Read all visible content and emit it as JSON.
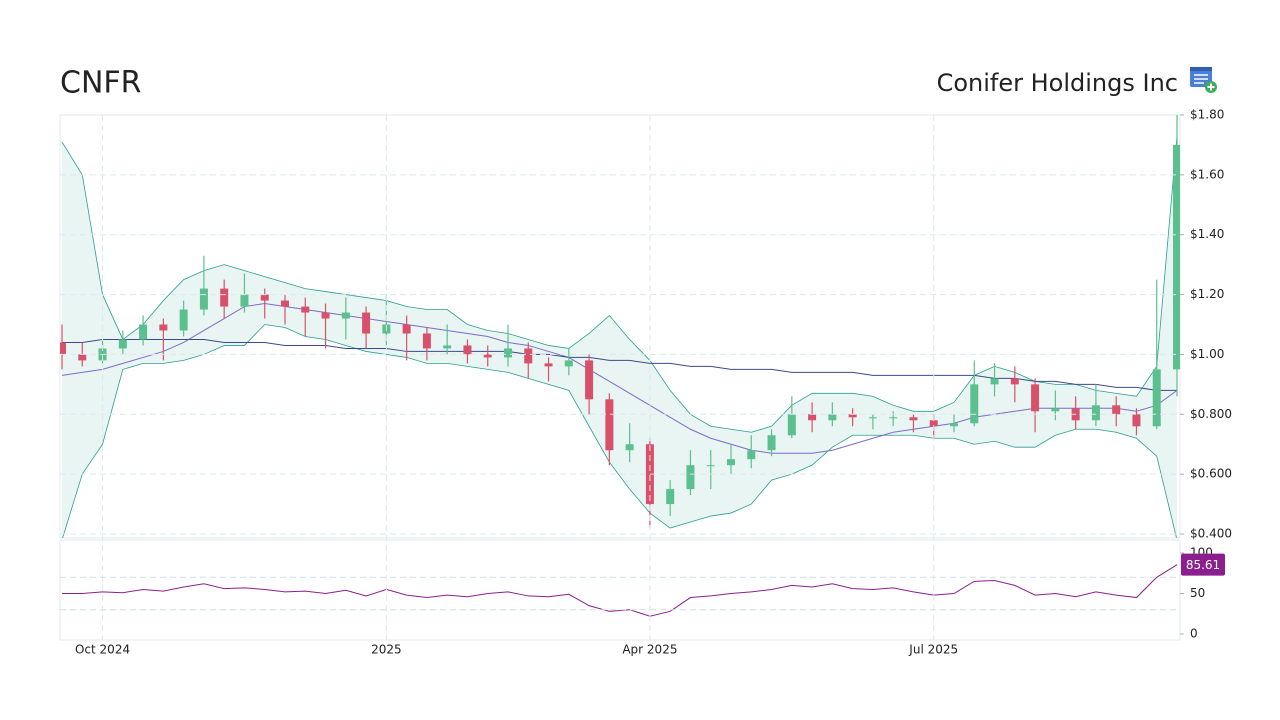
{
  "chart_data": [
    {
      "type": "candlestick",
      "title": "CNFR",
      "subtitle": "Conifer Holdings Inc",
      "categories": [
        null,
        null,
        "Oct 2024",
        null,
        null,
        null,
        null,
        null,
        null,
        null,
        null,
        null,
        null,
        null,
        null,
        null,
        "2025",
        null,
        null,
        null,
        null,
        null,
        null,
        null,
        null,
        null,
        null,
        null,
        null,
        "Apr 2025",
        null,
        null,
        null,
        null,
        null,
        null,
        null,
        null,
        null,
        null,
        null,
        null,
        null,
        "Jul 2025",
        null,
        null,
        null,
        null,
        null,
        null,
        null,
        null,
        null,
        null,
        null,
        null
      ],
      "open": [
        1.04,
        1.0,
        0.98,
        1.02,
        1.05,
        1.1,
        1.08,
        1.15,
        1.22,
        1.16,
        1.2,
        1.18,
        1.16,
        1.14,
        1.12,
        1.14,
        1.07,
        1.1,
        1.07,
        1.02,
        1.03,
        1.0,
        0.99,
        1.02,
        0.97,
        0.96,
        0.98,
        0.85,
        0.68,
        0.7,
        0.5,
        0.55,
        0.63,
        0.63,
        0.65,
        0.68,
        0.73,
        0.8,
        0.78,
        0.8,
        0.79,
        0.79,
        0.79,
        0.78,
        0.76,
        0.77,
        0.9,
        0.92,
        0.9,
        0.81,
        0.82,
        0.78,
        0.83,
        0.8,
        0.76,
        0.95
      ],
      "high": [
        1.1,
        1.04,
        1.05,
        1.08,
        1.13,
        1.12,
        1.18,
        1.33,
        1.25,
        1.27,
        1.22,
        1.2,
        1.19,
        1.17,
        1.19,
        1.16,
        1.2,
        1.13,
        1.09,
        1.1,
        1.05,
        1.03,
        1.1,
        1.04,
        0.99,
        1.02,
        1.0,
        0.87,
        0.77,
        0.72,
        0.58,
        0.68,
        0.68,
        0.7,
        0.73,
        0.75,
        0.86,
        0.84,
        0.84,
        0.82,
        0.8,
        0.81,
        0.8,
        0.8,
        0.8,
        0.98,
        0.97,
        0.96,
        0.92,
        0.88,
        0.86,
        0.9,
        0.86,
        0.82,
        1.25,
        1.8
      ],
      "low": [
        0.95,
        0.96,
        0.97,
        1.0,
        1.03,
        0.98,
        1.06,
        1.13,
        1.12,
        1.14,
        1.12,
        1.1,
        1.06,
        1.02,
        1.05,
        1.02,
        1.03,
        0.98,
        0.98,
        1.0,
        0.97,
        0.96,
        0.96,
        0.92,
        0.91,
        0.93,
        0.8,
        0.63,
        0.64,
        0.42,
        0.46,
        0.53,
        0.55,
        0.6,
        0.62,
        0.66,
        0.72,
        0.74,
        0.76,
        0.76,
        0.75,
        0.76,
        0.74,
        0.72,
        0.74,
        0.76,
        0.86,
        0.84,
        0.74,
        0.78,
        0.75,
        0.76,
        0.76,
        0.73,
        0.75,
        0.86
      ],
      "close": [
        1.0,
        0.98,
        1.02,
        1.05,
        1.1,
        1.08,
        1.15,
        1.22,
        1.16,
        1.2,
        1.18,
        1.16,
        1.14,
        1.12,
        1.14,
        1.07,
        1.1,
        1.07,
        1.02,
        1.03,
        1.0,
        0.99,
        1.02,
        0.97,
        0.96,
        0.98,
        0.85,
        0.68,
        0.7,
        0.5,
        0.55,
        0.63,
        0.63,
        0.65,
        0.68,
        0.73,
        0.8,
        0.78,
        0.8,
        0.79,
        0.79,
        0.79,
        0.78,
        0.76,
        0.77,
        0.9,
        0.92,
        0.9,
        0.81,
        0.82,
        0.78,
        0.83,
        0.8,
        0.76,
        0.95,
        1.7
      ],
      "up_color": "#5cbf8e",
      "down_color": "#d9506a",
      "band": {
        "color": "#2a9d8f",
        "fill": "#e8f5f2",
        "upper": [
          1.71,
          1.6,
          1.2,
          1.05,
          1.1,
          1.18,
          1.25,
          1.28,
          1.3,
          1.28,
          1.26,
          1.24,
          1.22,
          1.21,
          1.2,
          1.19,
          1.18,
          1.16,
          1.15,
          1.15,
          1.1,
          1.08,
          1.07,
          1.05,
          1.03,
          1.02,
          1.07,
          1.13,
          1.05,
          0.98,
          0.88,
          0.8,
          0.76,
          0.75,
          0.74,
          0.76,
          0.83,
          0.87,
          0.87,
          0.87,
          0.86,
          0.83,
          0.81,
          0.81,
          0.84,
          0.93,
          0.96,
          0.94,
          0.91,
          0.9,
          0.9,
          0.88,
          0.87,
          0.86,
          0.96,
          1.73
        ],
        "lower": [
          0.38,
          0.6,
          0.7,
          0.95,
          0.97,
          0.97,
          0.98,
          1.0,
          1.03,
          1.03,
          1.1,
          1.09,
          1.06,
          1.05,
          1.03,
          1.01,
          1.0,
          0.99,
          0.97,
          0.97,
          0.96,
          0.95,
          0.94,
          0.92,
          0.9,
          0.88,
          0.76,
          0.64,
          0.55,
          0.47,
          0.42,
          0.44,
          0.46,
          0.47,
          0.5,
          0.58,
          0.6,
          0.63,
          0.69,
          0.73,
          0.73,
          0.73,
          0.73,
          0.72,
          0.72,
          0.7,
          0.71,
          0.69,
          0.69,
          0.73,
          0.75,
          0.75,
          0.74,
          0.72,
          0.66,
          0.38
        ]
      },
      "series": [
        {
          "color": "#7e6bc9",
          "values": [
            0.93,
            0.94,
            0.95,
            0.97,
            0.99,
            1.01,
            1.04,
            1.08,
            1.12,
            1.16,
            1.17,
            1.16,
            1.15,
            1.14,
            1.13,
            1.12,
            1.11,
            1.1,
            1.09,
            1.08,
            1.07,
            1.06,
            1.04,
            1.03,
            1.01,
            0.99,
            0.95,
            0.91,
            0.87,
            0.83,
            0.79,
            0.75,
            0.72,
            0.7,
            0.68,
            0.67,
            0.67,
            0.67,
            0.68,
            0.7,
            0.72,
            0.74,
            0.75,
            0.76,
            0.77,
            0.79,
            0.8,
            0.81,
            0.82,
            0.82,
            0.82,
            0.82,
            0.82,
            0.81,
            0.83,
            0.88
          ]
        },
        {
          "color": "#3b4a8c",
          "values": [
            1.04,
            1.04,
            1.05,
            1.05,
            1.05,
            1.05,
            1.05,
            1.05,
            1.04,
            1.04,
            1.04,
            1.03,
            1.03,
            1.03,
            1.02,
            1.02,
            1.02,
            1.01,
            1.01,
            1.01,
            1.01,
            1.01,
            1.01,
            1.0,
            1.0,
            0.99,
            0.99,
            0.98,
            0.98,
            0.97,
            0.97,
            0.96,
            0.96,
            0.95,
            0.95,
            0.95,
            0.94,
            0.94,
            0.94,
            0.94,
            0.93,
            0.93,
            0.93,
            0.93,
            0.93,
            0.93,
            0.92,
            0.92,
            0.91,
            0.91,
            0.9,
            0.9,
            0.89,
            0.89,
            0.88,
            0.88
          ]
        }
      ],
      "ylim": [
        0.4,
        1.8
      ],
      "yticks": [
        {
          "value": 0.4,
          "label": "$0.400"
        },
        {
          "value": 0.6,
          "label": "$0.600"
        },
        {
          "value": 0.8,
          "label": "$0.800"
        },
        {
          "value": 1.0,
          "label": "$1.00"
        },
        {
          "value": 1.2,
          "label": "$1.20"
        },
        {
          "value": 1.4,
          "label": "$1.40"
        },
        {
          "value": 1.6,
          "label": "$1.60"
        },
        {
          "value": 1.8,
          "label": "$1.80"
        }
      ],
      "grid": true
    },
    {
      "type": "line",
      "color": "#8b1f8f",
      "values": [
        50,
        50,
        52,
        51,
        55,
        53,
        58,
        62,
        56,
        57,
        55,
        52,
        53,
        50,
        54,
        47,
        55,
        48,
        45,
        48,
        46,
        50,
        52,
        47,
        46,
        49,
        35,
        28,
        30,
        22,
        28,
        45,
        47,
        50,
        52,
        55,
        60,
        58,
        62,
        56,
        55,
        57,
        52,
        48,
        50,
        65,
        66,
        60,
        48,
        50,
        46,
        52,
        48,
        45,
        70,
        85.61
      ],
      "ylim": [
        0,
        100
      ],
      "yticks": [
        0,
        50,
        100
      ],
      "guides": [
        30,
        70
      ],
      "grid": true
    }
  ]
}
